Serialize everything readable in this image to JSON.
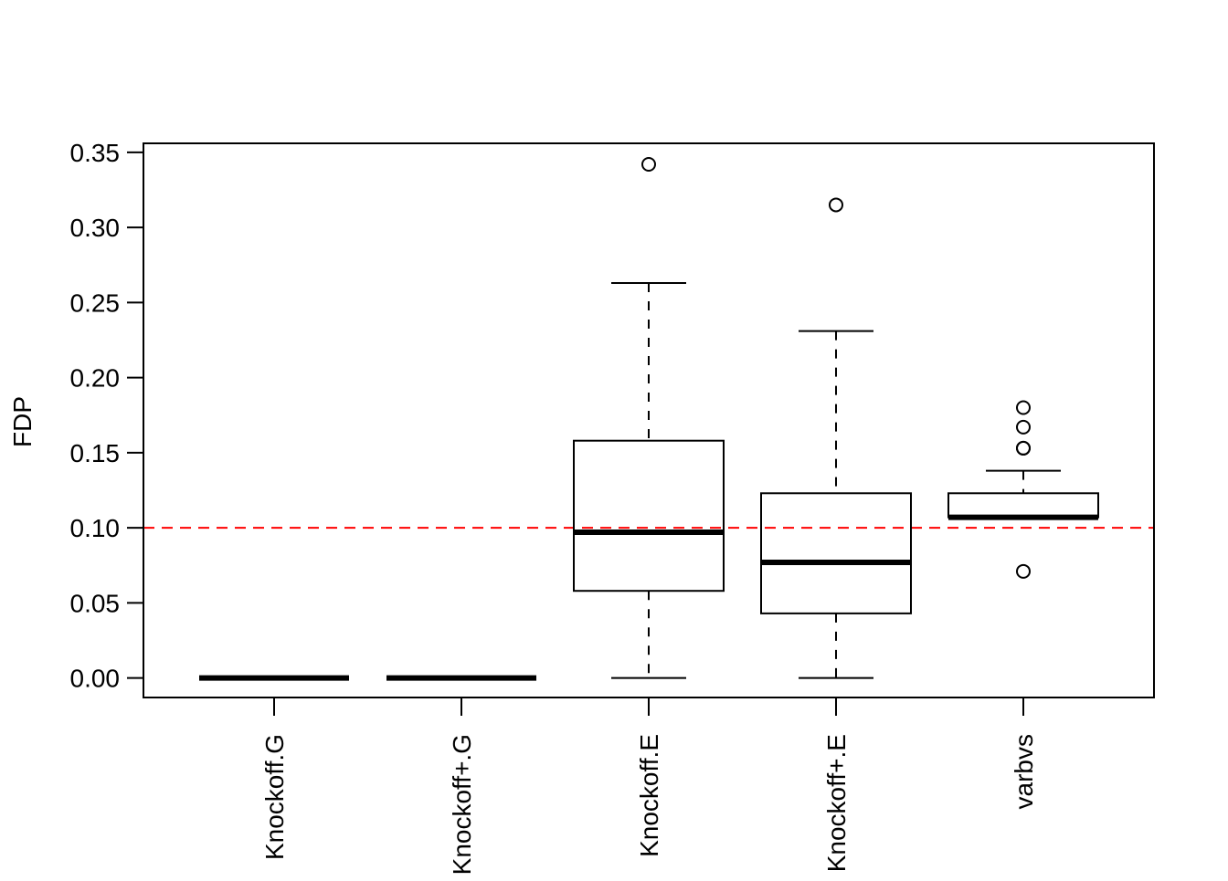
{
  "chart_data": {
    "type": "boxplot",
    "title": "",
    "xlabel": "",
    "ylabel": "FDP",
    "ylim": [
      -0.013,
      0.356
    ],
    "yticks": [
      "0.00",
      "0.05",
      "0.10",
      "0.15",
      "0.20",
      "0.25",
      "0.30",
      "0.35"
    ],
    "reference_line": {
      "y": 0.1,
      "color": "#ff0000",
      "style": "dashed"
    },
    "categories": [
      "Knockoff.G",
      "Knockoff+.G",
      "Knockoff.E",
      "Knockoff+.E",
      "varbvs"
    ],
    "series": [
      {
        "name": "Knockoff.G",
        "whisker_low": 0,
        "q1": 0,
        "median": 0,
        "q3": 0,
        "whisker_high": 0,
        "outliers": []
      },
      {
        "name": "Knockoff+.G",
        "whisker_low": 0,
        "q1": 0,
        "median": 0,
        "q3": 0,
        "whisker_high": 0,
        "outliers": []
      },
      {
        "name": "Knockoff.E",
        "whisker_low": 0,
        "q1": 0.058,
        "median": 0.097,
        "q3": 0.158,
        "whisker_high": 0.263,
        "outliers": [
          0.342
        ]
      },
      {
        "name": "Knockoff+.E",
        "whisker_low": 0,
        "q1": 0.043,
        "median": 0.077,
        "q3": 0.123,
        "whisker_high": 0.231,
        "outliers": [
          0.315
        ]
      },
      {
        "name": "varbvs",
        "whisker_low": 0.107,
        "q1": 0.107,
        "median": 0.107,
        "q3": 0.123,
        "whisker_high": 0.138,
        "outliers": [
          0.18,
          0.167,
          0.153,
          0.153,
          0.071
        ]
      }
    ]
  }
}
